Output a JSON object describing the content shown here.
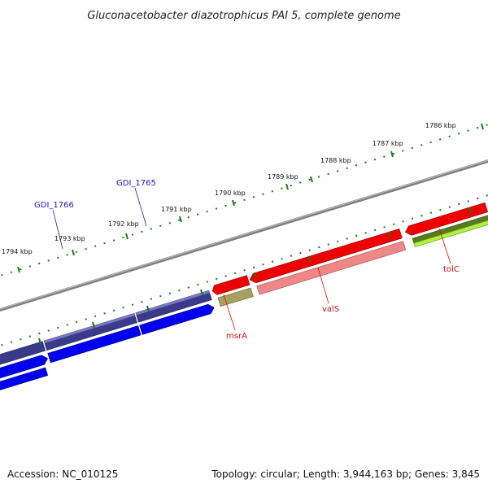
{
  "map": {
    "title": "Gluconacetobacter diazotrophicus PAI 5, complete genome",
    "ticks": [
      {
        "label": "1786 kbp"
      },
      {
        "label": "1787 kbp"
      },
      {
        "label": "1788 kbp"
      },
      {
        "label": "1789 kbp"
      },
      {
        "label": "1790 kbp"
      },
      {
        "label": "1791 kbp"
      },
      {
        "label": "1792 kbp"
      },
      {
        "label": "1793 kbp"
      },
      {
        "label": "1794 kbp"
      }
    ],
    "gene_labels": [
      {
        "name": "GDI_1766",
        "strand": "forward"
      },
      {
        "name": "GDI_1765",
        "strand": "forward"
      },
      {
        "name": "msrA",
        "strand": "reverse"
      },
      {
        "name": "valS",
        "strand": "reverse"
      },
      {
        "name": "tolC",
        "strand": "reverse"
      }
    ],
    "colors": {
      "forward_cds": "#0000ee",
      "forward_gene": "#3a3a8a",
      "reverse_cds": "#ee0000",
      "reverse_gene_pink": "#ee8888",
      "reverse_gene_olive": "#a8a060",
      "reverse_gene_green": "#5a7a20",
      "reverse_gene_lime": "#b0f040",
      "backbone": "#808080",
      "ticks": "#1a7a1a",
      "label_forward": "#1a1ab0",
      "label_reverse": "#d01010"
    }
  },
  "footer": {
    "accession": "Accession: NC_010125",
    "summary": "Topology: circular; Length: 3,944,163 bp; Genes: 3,845"
  }
}
